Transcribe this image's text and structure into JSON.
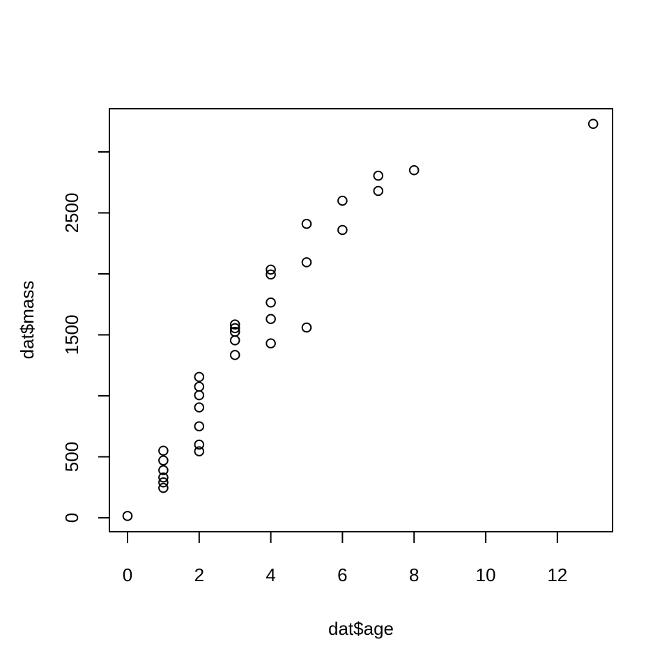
{
  "chart_data": {
    "type": "scatter",
    "xlabel": "dat$age",
    "ylabel": "dat$mass",
    "xlim": [
      0,
      13
    ],
    "ylim": [
      0,
      3200
    ],
    "x_ticks": [
      0,
      2,
      4,
      6,
      8,
      10,
      12
    ],
    "x_tick_labels": [
      "0",
      "2",
      "4",
      "6",
      "8",
      "10",
      "12"
    ],
    "y_ticks": [
      0,
      500,
      1000,
      1500,
      2000,
      2500,
      3000
    ],
    "y_tick_labels": [
      "0",
      "500",
      "",
      "1500",
      "",
      "2500",
      ""
    ],
    "grid": false,
    "points": [
      {
        "x": 0,
        "y": 15
      },
      {
        "x": 1,
        "y": 245
      },
      {
        "x": 1,
        "y": 290
      },
      {
        "x": 1,
        "y": 330
      },
      {
        "x": 1,
        "y": 390
      },
      {
        "x": 1,
        "y": 470
      },
      {
        "x": 1,
        "y": 550
      },
      {
        "x": 2,
        "y": 545
      },
      {
        "x": 2,
        "y": 600
      },
      {
        "x": 2,
        "y": 750
      },
      {
        "x": 2,
        "y": 905
      },
      {
        "x": 2,
        "y": 1005
      },
      {
        "x": 2,
        "y": 1075
      },
      {
        "x": 2,
        "y": 1155
      },
      {
        "x": 3,
        "y": 1335
      },
      {
        "x": 3,
        "y": 1455
      },
      {
        "x": 3,
        "y": 1525
      },
      {
        "x": 3,
        "y": 1555
      },
      {
        "x": 3,
        "y": 1585
      },
      {
        "x": 4,
        "y": 1430
      },
      {
        "x": 4,
        "y": 1630
      },
      {
        "x": 4,
        "y": 1765
      },
      {
        "x": 4,
        "y": 1995
      },
      {
        "x": 4,
        "y": 2035
      },
      {
        "x": 5,
        "y": 1560
      },
      {
        "x": 5,
        "y": 2095
      },
      {
        "x": 5,
        "y": 2410
      },
      {
        "x": 6,
        "y": 2360
      },
      {
        "x": 6,
        "y": 2600
      },
      {
        "x": 7,
        "y": 2680
      },
      {
        "x": 7,
        "y": 2805
      },
      {
        "x": 8,
        "y": 2850
      },
      {
        "x": 13,
        "y": 3230
      }
    ]
  }
}
